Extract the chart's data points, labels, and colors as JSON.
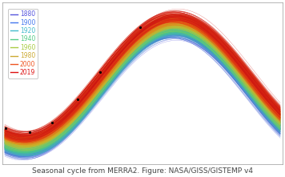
{
  "title": "Seasonal cycle from MERRA2. Figure: NASA/GISS/GISTEMP v4",
  "title_fontsize": 6.5,
  "legend_years": [
    "1880",
    "1900",
    "1920",
    "1940",
    "1960",
    "1980",
    "2000",
    "2019"
  ],
  "legend_colors": [
    "#5555dd",
    "#4477ee",
    "#44bbcc",
    "#55cc88",
    "#aacc44",
    "#ccaa33",
    "#ee5522",
    "#dd1111"
  ],
  "background_color": "#ffffff",
  "legend_fontsize": 5.5,
  "figsize": [
    3.56,
    2.21
  ],
  "dpi": 100,
  "n_years": 140,
  "year_start": 1880,
  "year_end": 2019,
  "amplitude": 4.2,
  "peak_month": 6.8,
  "warming_total": 1.4,
  "spread": 0.35,
  "n_sub": 5
}
